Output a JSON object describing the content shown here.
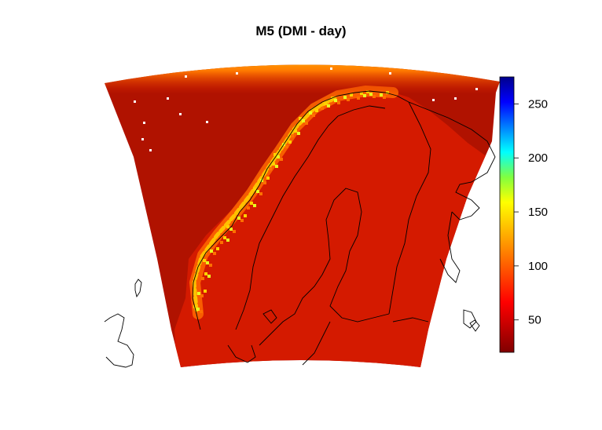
{
  "title": "M5 (DMI - day)",
  "colorbar": {
    "colors": [
      "#800000",
      "#c00000",
      "#ff0000",
      "#ff4000",
      "#ff8000",
      "#ffc000",
      "#ffff00",
      "#80ff40",
      "#00ffff",
      "#0080ff",
      "#0000ff",
      "#00008b"
    ],
    "range": [
      20,
      275
    ],
    "ticks": [
      {
        "value": 50,
        "label": "50"
      },
      {
        "value": 100,
        "label": "100"
      },
      {
        "value": 150,
        "label": "150"
      },
      {
        "value": 200,
        "label": "200"
      },
      {
        "value": 250,
        "label": "250"
      }
    ]
  },
  "field_colors": {
    "ocean": "#b01200",
    "land": "#d41a00",
    "coast": "#ff7000",
    "coast_high": "#ffd000",
    "coast_peak": "#e8ff20",
    "north_edge": "#ff5a00",
    "north_edge_bright": "#ffd400",
    "outline": "#000000"
  }
}
